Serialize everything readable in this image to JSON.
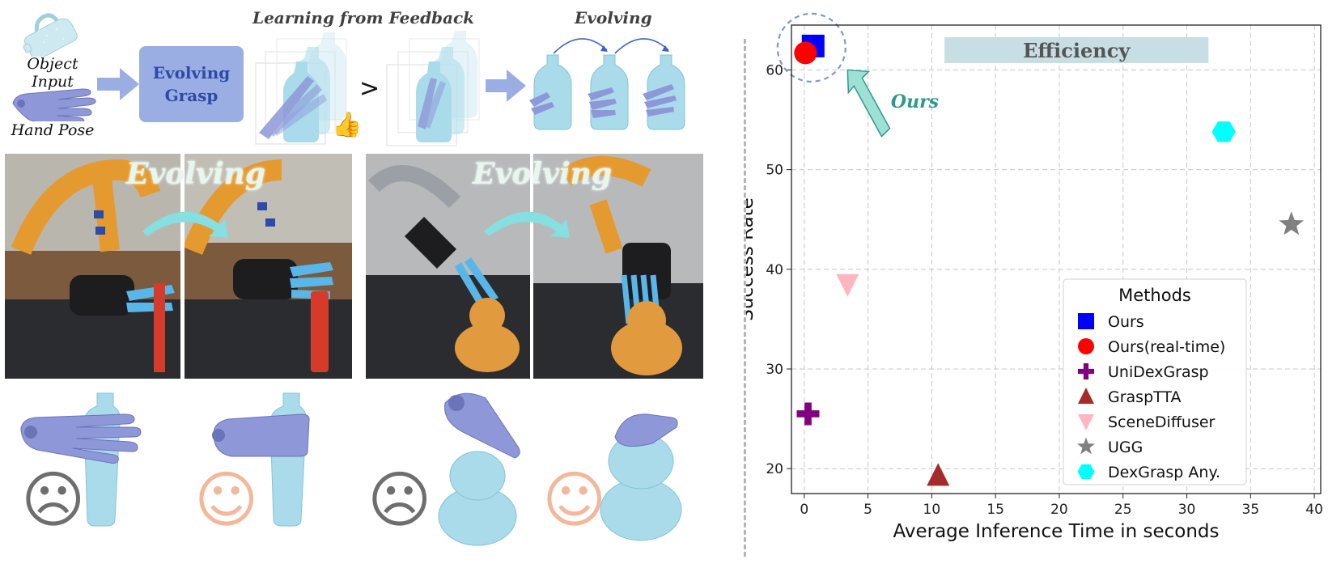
{
  "pipeline": {
    "object_input_label": "Object Input",
    "hand_pose_label": "Hand Pose",
    "module_label_line1": "Evolving",
    "module_label_line2": "Grasp",
    "learning_label": "Learning from Feedback",
    "compare_symbol": ">",
    "evolving_label": "Evolving",
    "thumbs_up_glyph": "👍"
  },
  "photos": {
    "left_overlay": "Evolving",
    "right_overlay": "Evolving"
  },
  "faces": {
    "sad_glyph": "☹",
    "happy_glyph": "☺"
  },
  "colors": {
    "accent_blue": "#9aaee3",
    "bottle": "#a9dbea",
    "hand": "#8e98d8",
    "arrow_cyan": "#86dfe0",
    "ours_annot": "#2b9a8a",
    "efficiency_box": "#c7dfe4"
  },
  "chart_data": {
    "type": "scatter",
    "xlabel": "Average Inference Time in seconds",
    "ylabel": "Success Rate",
    "xlim": [
      -1,
      40.5
    ],
    "ylim": [
      17.5,
      64.5
    ],
    "xticks": [
      0,
      5,
      10,
      15,
      20,
      25,
      30,
      35,
      40
    ],
    "yticks": [
      20,
      30,
      40,
      50,
      60
    ],
    "grid": true,
    "legend_title": "Methods",
    "legend_position": "lower-right",
    "efficiency_label": "Efficiency",
    "ours_annotation": "Ours",
    "series": [
      {
        "name": "Ours",
        "marker": "square",
        "color": "#0000ff",
        "x": 0.7,
        "y": 62.4
      },
      {
        "name": "Ours(real-time)",
        "marker": "circle",
        "color": "#ff0000",
        "x": 0.1,
        "y": 61.7
      },
      {
        "name": "UniDexGrasp",
        "marker": "plus",
        "color": "#800080",
        "x": 0.3,
        "y": 25.5
      },
      {
        "name": "GraspTTA",
        "marker": "triangle-up",
        "color": "#a52a2a",
        "x": 10.5,
        "y": 19.3
      },
      {
        "name": "SceneDiffuser",
        "marker": "triangle-down",
        "color": "#ffb6c1",
        "x": 3.4,
        "y": 38.5
      },
      {
        "name": "UGG",
        "marker": "star",
        "color": "#808080",
        "x": 38.2,
        "y": 44.5
      },
      {
        "name": "DexGrasp Any.",
        "marker": "hexagon",
        "color": "#00ffff",
        "x": 32.9,
        "y": 53.8
      }
    ]
  }
}
